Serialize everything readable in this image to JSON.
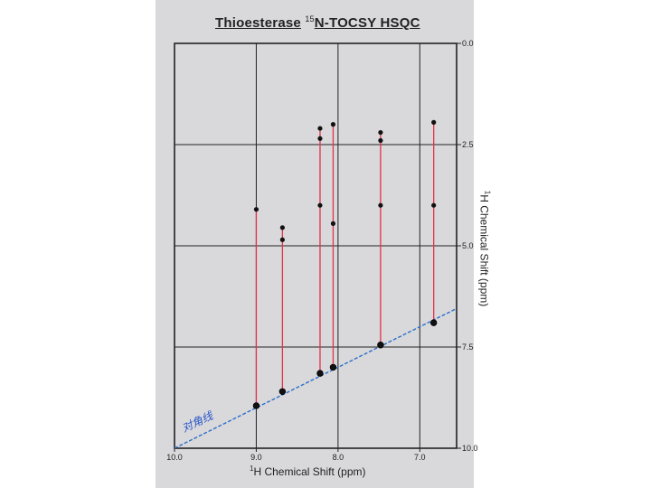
{
  "chart_data": {
    "type": "scatter",
    "title_parts": {
      "main": "Thioesterase",
      "sup": "15",
      "rest": "N-TOCSY HSQC"
    },
    "xlabel_parts": {
      "sup": "1",
      "text": "H Chemical Shift (ppm)"
    },
    "ylabel_parts": {
      "sup": "1",
      "text": "H Chemical Shift (ppm)"
    },
    "x_ticks": [
      10.0,
      9.0,
      8.0,
      7.0
    ],
    "x_tick_labels": [
      "10.0",
      "9.0",
      "8.0",
      "7.0"
    ],
    "y_ticks": [
      0.0,
      2.5,
      5.0,
      7.5,
      10.0
    ],
    "y_tick_labels": [
      "0.0",
      "2.5",
      "5.0",
      "7.5",
      "10.0"
    ],
    "xlim": [
      10.0,
      6.55
    ],
    "ylim": [
      0.0,
      10.0
    ],
    "x_reversed": true,
    "y_reversed": true,
    "grid": true,
    "diagonal": {
      "from": 10.0,
      "to": 6.55,
      "color": "#2a6fc9"
    },
    "annotation": "对角线",
    "strips": [
      {
        "x": 9.0,
        "y_top": 4.1,
        "y_diag": 8.95,
        "peaks": [
          4.1,
          8.95
        ]
      },
      {
        "x": 8.68,
        "y_top": 4.55,
        "y_diag": 8.6,
        "peaks": [
          4.55,
          4.85,
          8.6
        ]
      },
      {
        "x": 8.22,
        "y_top": 2.05,
        "y_diag": 8.15,
        "peaks": [
          2.1,
          2.35,
          4.0,
          8.15
        ]
      },
      {
        "x": 8.06,
        "y_top": 1.95,
        "y_diag": 8.0,
        "peaks": [
          2.0,
          4.45,
          8.0
        ]
      },
      {
        "x": 7.48,
        "y_top": 2.15,
        "y_diag": 7.45,
        "peaks": [
          2.2,
          2.4,
          4.0,
          7.45
        ]
      },
      {
        "x": 6.83,
        "y_top": 1.9,
        "y_diag": 6.9,
        "peaks": [
          1.95,
          4.0,
          6.9
        ]
      }
    ],
    "colors": {
      "strip": "#e43248",
      "peak": "#111111",
      "grid": "#222222",
      "diagonal": "#2a6fc9"
    }
  }
}
